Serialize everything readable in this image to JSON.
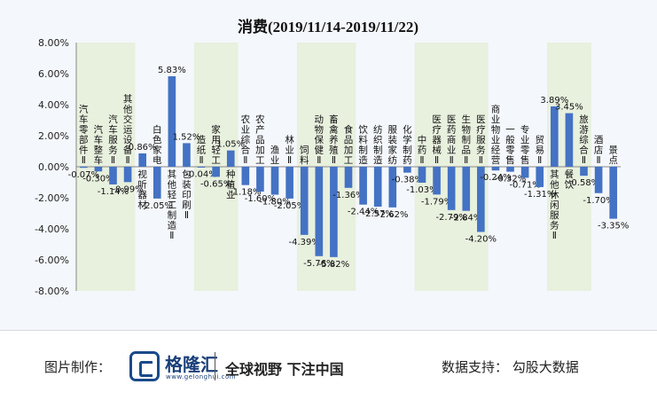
{
  "chart_data": {
    "type": "bar",
    "title": "消费(2019/11/14-2019/11/22)",
    "ylim": [
      -8,
      8
    ],
    "yticks": [
      "8.00%",
      "6.00%",
      "4.00%",
      "2.00%",
      "0.00%",
      "-2.00%",
      "-4.00%",
      "-6.00%",
      "-8.00%"
    ],
    "categories": [
      "汽车零部件Ⅱ",
      "汽车整车",
      "汽车服务Ⅱ",
      "其他交运设备Ⅱ",
      "视听器材",
      "白色家电",
      "其他轻工制造Ⅱ",
      "包装印刷Ⅱ",
      "造纸Ⅱ",
      "家用轻工",
      "种植业",
      "农业综合Ⅱ",
      "农产品加工",
      "渔业",
      "林业Ⅱ",
      "饲料",
      "动物保健Ⅱ",
      "畜禽养殖Ⅱ",
      "食品加工",
      "饮料制造",
      "纺织制造",
      "服装家纺",
      "化学制药",
      "中药Ⅱ",
      "医疗器械Ⅱ",
      "医药商业Ⅱ",
      "生物制品Ⅱ",
      "医疗服务Ⅱ",
      "商业物业经营",
      "一般零售",
      "专业零售",
      "贸易Ⅱ",
      "其他休闲服务Ⅱ",
      "餐饮",
      "旅游综合Ⅱ",
      "酒店Ⅱ",
      "景点"
    ],
    "values": [
      -0.07,
      -0.3,
      -1.14,
      -0.99,
      0.86,
      -2.05,
      5.83,
      1.52,
      -0.04,
      -0.65,
      1.05,
      -1.18,
      -1.6,
      -1.8,
      -2.05,
      -4.39,
      -5.76,
      -5.82,
      -1.36,
      -2.44,
      -2.57,
      -2.62,
      -0.38,
      -1.03,
      -1.79,
      -2.79,
      -2.84,
      -4.2,
      -0.24,
      -0.32,
      -0.71,
      -1.31,
      3.89,
      3.45,
      -0.58,
      -1.7,
      -3.35
    ],
    "value_labels": [
      "-0.07%",
      "-0.30%",
      "-1.14%",
      "-0.99%",
      "0.86%",
      "-2.05%",
      "5.83%",
      "1.52%",
      "-0.04%",
      "-0.65%",
      "1.05%",
      "-1.18%",
      "-1.60%",
      "-1.80%",
      "-2.05%",
      "-4.39%",
      "-5.76%",
      "-5.82%",
      "-1.36%",
      "-2.44%",
      "-2.57%",
      "-2.62%",
      "-0.38%",
      "-1.03%",
      "-1.79%",
      "-2.79%",
      "-2.84%",
      "-4.20%",
      "-0.24%",
      "-0.32%",
      "-0.71%",
      "-1.31%",
      "3.89%",
      "3.45%",
      "-0.58%",
      "-1.70%",
      "-3.35%"
    ],
    "bar_color": "#4472c4",
    "stripe_color": "#e8f0de"
  },
  "footer": {
    "made_by": "图片制作：",
    "brand": "格隆汇",
    "brand_url": "www.gelonghui.com",
    "slogan": "全球视野 下注中国",
    "support": "数据支持：  勾股大数据"
  }
}
